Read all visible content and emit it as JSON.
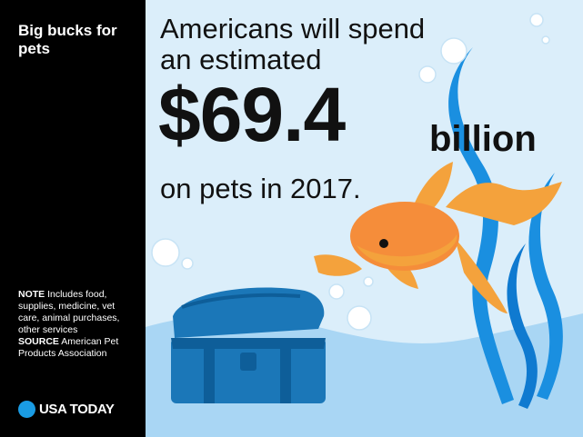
{
  "sidebar": {
    "title": "Big bucks for pets",
    "note_label": "NOTE",
    "note_text": "Includes food, supplies, medicine, vet care, animal purchases, other services",
    "source_label": "SOURCE",
    "source_text": "American Pet Products Association"
  },
  "headline": {
    "line1": "Americans will spend",
    "line2": "an estimated",
    "amount": "$69.4",
    "unit": "billion",
    "line4": "on pets in 2017."
  },
  "logo": {
    "text": "USA TODAY"
  },
  "colors": {
    "sidebar_bg": "#000000",
    "water": "#dbeefa",
    "sand": "#a9d6f4",
    "seaweed": "#1a8fe0",
    "goldfish": "#f4a23c",
    "chest": "#1b77b8",
    "logo_dot": "#1a9ce4"
  },
  "icons": [
    "goldfish-icon",
    "treasure-chest-icon",
    "seaweed-icon",
    "bubble-icon",
    "usa-today-dot-icon"
  ]
}
